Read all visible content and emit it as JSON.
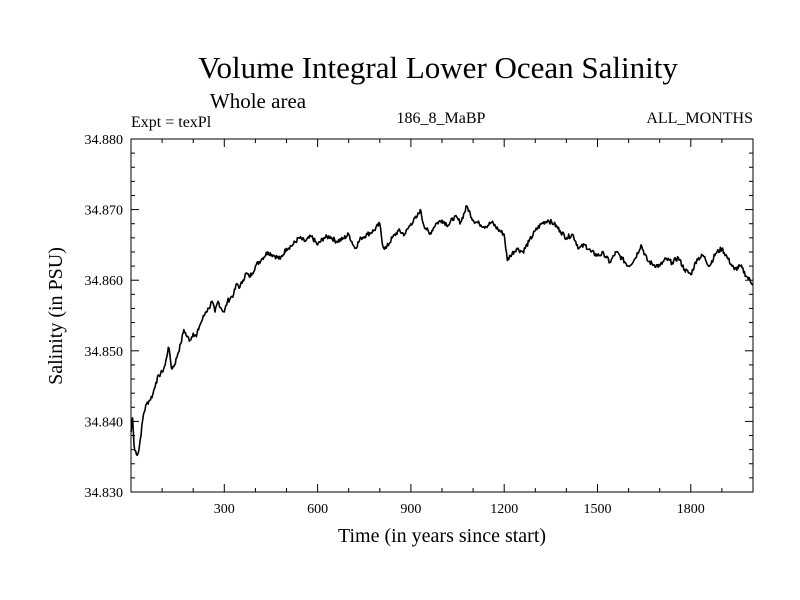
{
  "chart_data": {
    "type": "line",
    "title": "Volume Integral Lower Ocean Salinity",
    "subtitle": "Whole area",
    "expt": "Expt = texPl",
    "run_id": "186_8_MaBP",
    "season": "ALL_MONTHS",
    "xlabel": "Time (in years since start)",
    "ylabel": "Salinity (in PSU)",
    "xlim": [
      0,
      2000
    ],
    "ylim": [
      34.83,
      34.88
    ],
    "xticks": [
      300,
      600,
      900,
      1200,
      1500,
      1800
    ],
    "xtick_labels": [
      "300",
      "600",
      "900",
      "1200",
      "1500",
      "1800"
    ],
    "yticks": [
      34.83,
      34.84,
      34.85,
      34.86,
      34.87,
      34.88
    ],
    "ytick_labels": [
      "34.830",
      "34.840",
      "34.850",
      "34.860",
      "34.870",
      "34.880"
    ],
    "series": [
      {
        "name": "Volume integral lower ocean salinity",
        "x": [
          0,
          5,
          10,
          15,
          20,
          25,
          30,
          40,
          50,
          60,
          70,
          80,
          90,
          100,
          110,
          120,
          125,
          130,
          140,
          150,
          160,
          170,
          180,
          190,
          200,
          210,
          220,
          230,
          240,
          250,
          260,
          270,
          280,
          290,
          300,
          310,
          320,
          330,
          340,
          350,
          360,
          370,
          380,
          390,
          400,
          420,
          440,
          460,
          480,
          500,
          520,
          540,
          560,
          580,
          600,
          620,
          640,
          660,
          680,
          700,
          720,
          740,
          760,
          780,
          800,
          810,
          820,
          840,
          860,
          880,
          900,
          920,
          930,
          940,
          960,
          980,
          1000,
          1020,
          1040,
          1060,
          1080,
          1100,
          1120,
          1140,
          1160,
          1180,
          1200,
          1210,
          1220,
          1240,
          1260,
          1280,
          1300,
          1320,
          1340,
          1360,
          1380,
          1400,
          1420,
          1440,
          1460,
          1480,
          1500,
          1520,
          1540,
          1560,
          1580,
          1600,
          1620,
          1640,
          1660,
          1680,
          1700,
          1720,
          1740,
          1760,
          1780,
          1800,
          1820,
          1840,
          1860,
          1880,
          1900,
          1920,
          1940,
          1960,
          1980,
          2000
        ],
        "y": [
          34.8385,
          34.8405,
          34.8365,
          34.8358,
          34.8352,
          34.8358,
          34.8375,
          34.841,
          34.8425,
          34.843,
          34.8438,
          34.8455,
          34.8465,
          34.847,
          34.848,
          34.8505,
          34.8495,
          34.8475,
          34.848,
          34.8495,
          34.851,
          34.853,
          34.852,
          34.8515,
          34.8525,
          34.852,
          34.8535,
          34.8545,
          34.8555,
          34.856,
          34.857,
          34.8555,
          34.857,
          34.856,
          34.8555,
          34.857,
          34.8575,
          34.858,
          34.8595,
          34.859,
          34.86,
          34.861,
          34.8605,
          34.861,
          34.862,
          34.863,
          34.864,
          34.8635,
          34.863,
          34.8645,
          34.865,
          34.866,
          34.8655,
          34.8662,
          34.865,
          34.866,
          34.8662,
          34.8655,
          34.8658,
          34.8665,
          34.8645,
          34.866,
          34.8665,
          34.867,
          34.868,
          34.8648,
          34.8645,
          34.866,
          34.867,
          34.8665,
          34.868,
          34.869,
          34.87,
          34.868,
          34.8665,
          34.868,
          34.8685,
          34.8678,
          34.869,
          34.8682,
          34.8705,
          34.8685,
          34.868,
          34.8676,
          34.8682,
          34.8672,
          34.8665,
          34.8628,
          34.8635,
          34.8645,
          34.864,
          34.8655,
          34.867,
          34.868,
          34.8685,
          34.868,
          34.867,
          34.866,
          34.8665,
          34.8645,
          34.865,
          34.864,
          34.8635,
          34.8638,
          34.8625,
          34.864,
          34.863,
          34.862,
          34.863,
          34.865,
          34.8628,
          34.8622,
          34.862,
          34.863,
          34.8625,
          34.8632,
          34.8615,
          34.8608,
          34.863,
          34.8635,
          34.862,
          34.8638,
          34.8645,
          34.863,
          34.8615,
          34.862,
          34.8605,
          34.8595
        ]
      }
    ]
  }
}
